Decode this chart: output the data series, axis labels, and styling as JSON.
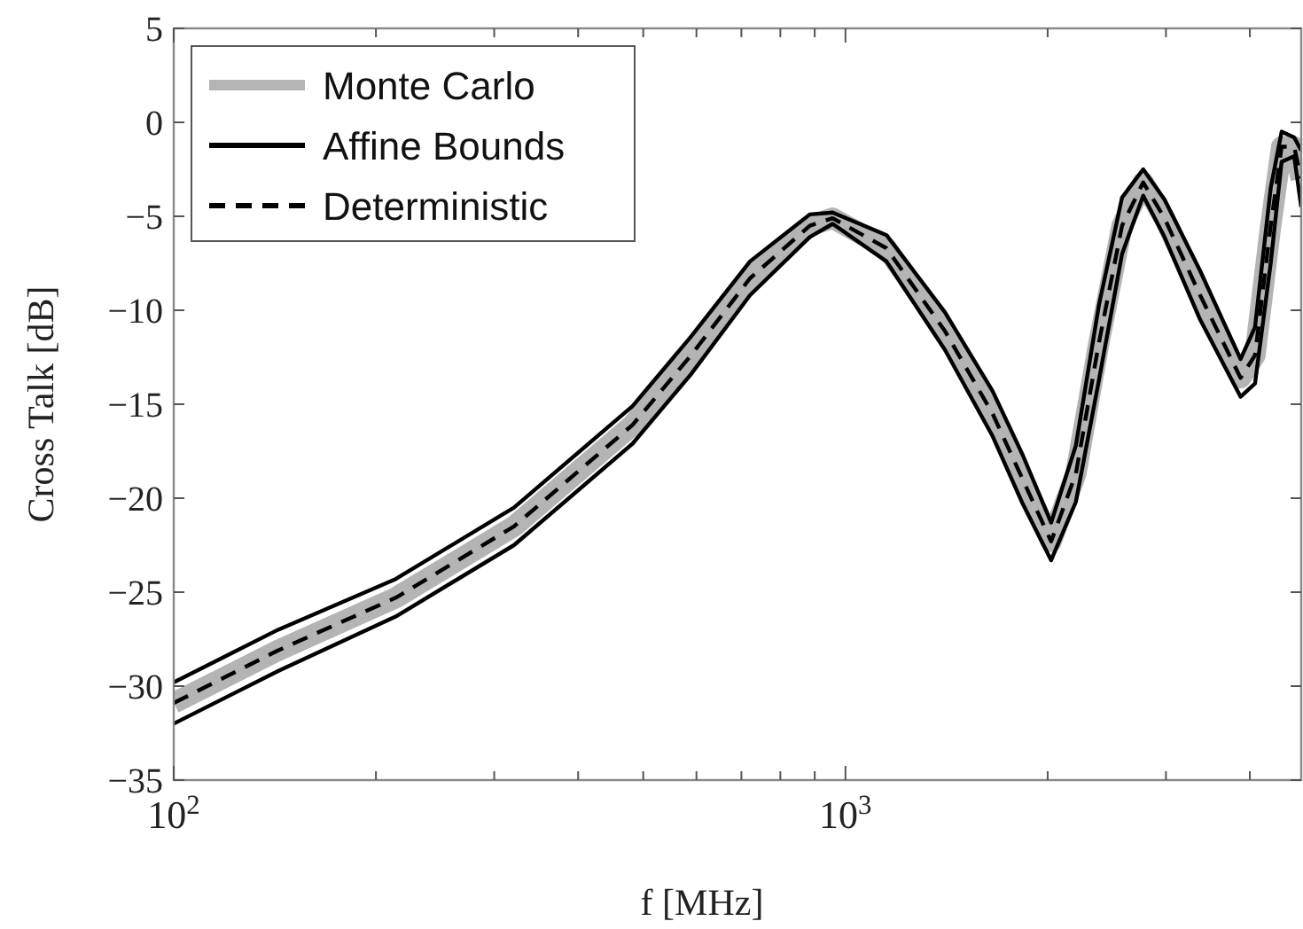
{
  "chart_data": {
    "type": "line",
    "xlabel": "f [MHz]",
    "ylabel": "Cross Talk [dB]",
    "log": "x",
    "grid": false,
    "legend": "top left",
    "x": [
      100,
      143,
      214,
      321,
      482,
      589,
      721,
      885,
      957,
      1151,
      1406,
      1656,
      1836,
      2024,
      2203,
      2385,
      2581,
      2775,
      2985,
      3373,
      3874,
      4071,
      4296,
      4460,
      4656,
      4770
    ],
    "xlim": [
      100,
      4770
    ],
    "xticks": [
      {
        "value": 100,
        "label": "10$^{2}$"
      },
      {
        "value": 200,
        "label": null
      },
      {
        "value": 300,
        "label": null
      },
      {
        "value": 400,
        "label": null
      },
      {
        "value": 500,
        "label": null
      },
      {
        "value": 600,
        "label": null
      },
      {
        "value": 700,
        "label": null
      },
      {
        "value": 800,
        "label": null
      },
      {
        "value": 900,
        "label": null
      },
      {
        "value": 1000,
        "label": "10$^{3}$"
      },
      {
        "value": 2000,
        "label": null
      },
      {
        "value": 3000,
        "label": null
      },
      {
        "value": 4000,
        "label": null
      }
    ],
    "ylim": [
      -35,
      5
    ],
    "yticks": [
      -35,
      -30,
      -25,
      -20,
      -15,
      -10,
      -5,
      0,
      5
    ],
    "series": [
      {
        "name": "Monte Carlo",
        "color": "#b4b4b4",
        "line_style": "solid",
        "values": [
          -30.9,
          -28.1,
          -25.3,
          -21.5,
          -16.1,
          -12.4,
          -8.3,
          -5.5,
          -5.1,
          -6.7,
          -11.1,
          -15.5,
          -19.0,
          -22.3,
          -18.7,
          -11.7,
          -5.5,
          -3.2,
          -5.1,
          -9.2,
          -13.6,
          -12.4,
          -5.5,
          -1.3,
          -1.3,
          -3.0
        ]
      },
      {
        "name": "Affine Bounds",
        "color": "#000000",
        "line_style": "solid",
        "values": [
          -29.8,
          -27.0,
          -24.3,
          -20.5,
          -15.1,
          -11.4,
          -7.4,
          -4.9,
          -4.8,
          -6.0,
          -10.1,
          -14.3,
          -17.7,
          -21.3,
          -17.2,
          -9.7,
          -4.0,
          -2.5,
          -4.1,
          -7.9,
          -12.6,
          -10.9,
          -3.5,
          -0.5,
          -0.8,
          -1.5
        ]
      },
      {
        "color": "#000000",
        "line_style": "solid",
        "values": [
          -32.0,
          -29.2,
          -26.3,
          -22.5,
          -17.1,
          -13.4,
          -9.2,
          -6.1,
          -5.4,
          -7.4,
          -12.1,
          -16.7,
          -20.3,
          -23.3,
          -20.2,
          -13.7,
          -7.0,
          -3.9,
          -6.1,
          -10.5,
          -14.6,
          -13.9,
          -7.5,
          -2.1,
          -1.8,
          -4.5
        ]
      },
      {
        "name": "Deterministic",
        "color": "#000000",
        "line_style": "dashed",
        "values": [
          -30.9,
          -28.1,
          -25.3,
          -21.5,
          -16.1,
          -12.4,
          -8.3,
          -5.5,
          -5.1,
          -6.7,
          -11.1,
          -15.5,
          -19.0,
          -22.3,
          -18.7,
          -11.7,
          -5.5,
          -3.2,
          -5.1,
          -9.2,
          -13.6,
          -12.4,
          -5.5,
          -1.3,
          -1.3,
          -3.0
        ]
      }
    ]
  }
}
